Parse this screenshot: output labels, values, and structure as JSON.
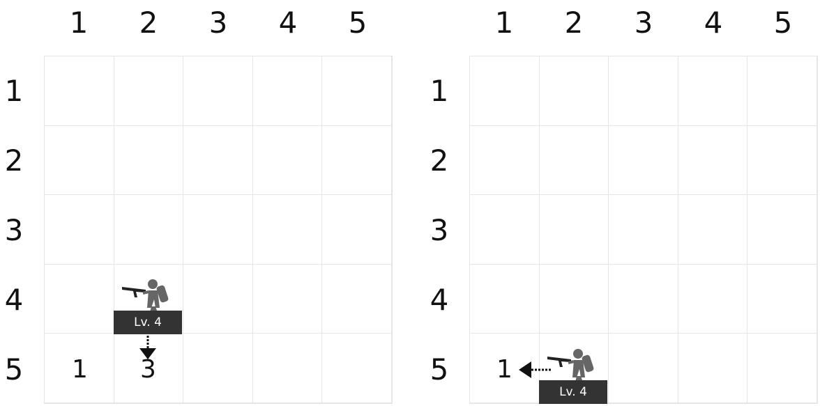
{
  "boards": [
    {
      "col_labels": [
        "1",
        "2",
        "3",
        "4",
        "5"
      ],
      "row_labels": [
        "1",
        "2",
        "3",
        "4",
        "5"
      ],
      "unit": {
        "icon": "soldier-with-rifle-icon",
        "row": 4,
        "col": 2,
        "level_label": "Lv. 4",
        "move_direction": "down"
      },
      "cell_numbers": [
        {
          "row": 5,
          "col": 1,
          "value": "1"
        },
        {
          "row": 5,
          "col": 2,
          "value": "3"
        }
      ]
    },
    {
      "col_labels": [
        "1",
        "2",
        "3",
        "4",
        "5"
      ],
      "row_labels": [
        "1",
        "2",
        "3",
        "4",
        "5"
      ],
      "unit": {
        "icon": "soldier-with-rifle-icon",
        "row": 5,
        "col": 2,
        "level_label": "Lv. 4",
        "move_direction": "left"
      },
      "cell_numbers": [
        {
          "row": 5,
          "col": 1,
          "value": "1"
        }
      ]
    }
  ],
  "colors": {
    "grid_line": "#e6e6e6",
    "badge_bg": "#333333",
    "badge_text": "#ffffff",
    "soldier": "#666666",
    "weapon": "#222222"
  }
}
